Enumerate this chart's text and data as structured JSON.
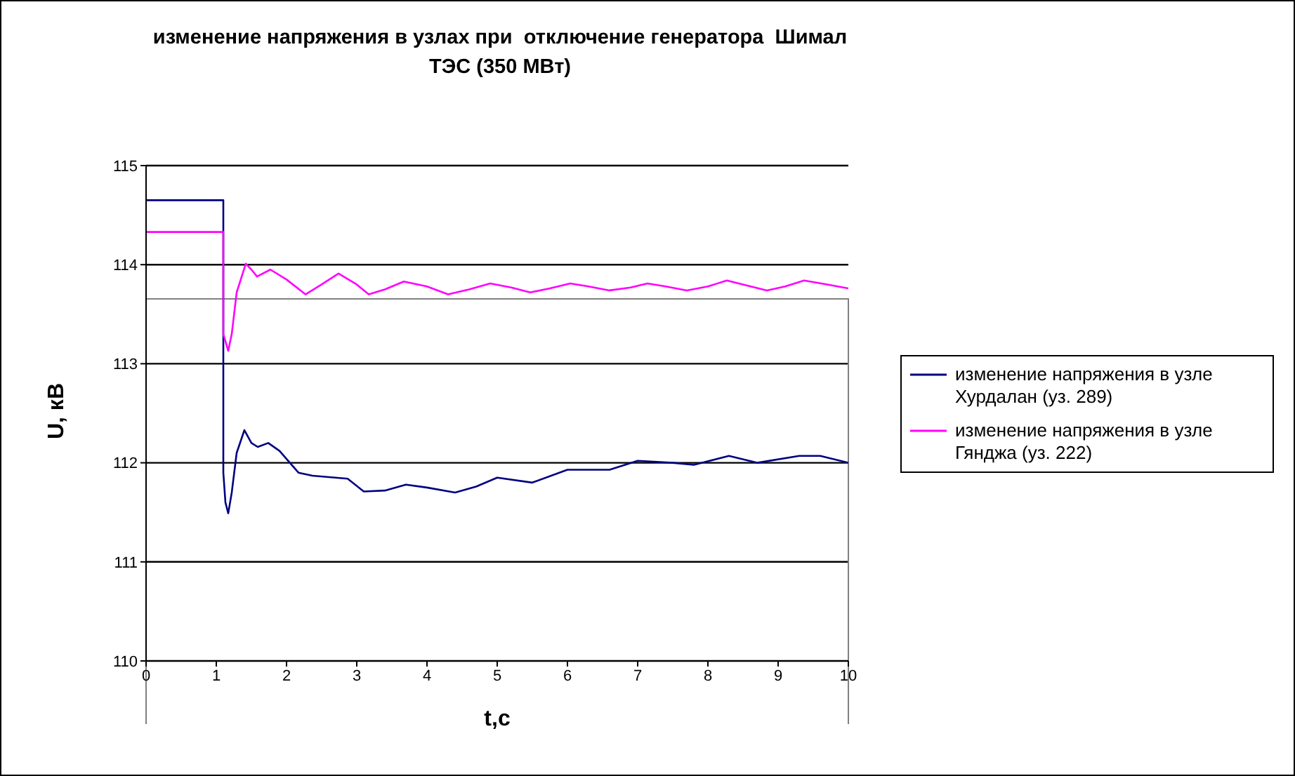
{
  "chart_data": {
    "type": "line",
    "title": "изменение напряжения в узлах при  отключение генератора  Шимал ТЭС (350 МВт)",
    "xlabel": "t,c",
    "ylabel": "U, кВ",
    "xlim": [
      0,
      10
    ],
    "xticks": [
      0,
      1,
      2,
      3,
      4,
      5,
      6,
      7,
      8,
      9,
      10
    ],
    "ylim": [
      110,
      115
    ],
    "yticks": [
      110,
      111,
      112,
      113,
      114,
      115
    ],
    "grid": "y",
    "legend": "right",
    "marker": "none",
    "line_style": "solid",
    "series": [
      {
        "name": "изменение напряжения в узле Хурдалан (уз. 289)",
        "color": "#000080",
        "x": [
          0,
          1.1,
          1.1,
          1.13,
          1.17,
          1.22,
          1.29,
          1.4,
          1.5,
          1.59,
          1.74,
          1.9,
          2.17,
          2.37,
          2.87,
          3.1,
          3.4,
          3.7,
          4,
          4.4,
          4.7,
          5,
          5.5,
          6,
          6.6,
          7,
          7.5,
          7.8,
          8.3,
          8.7,
          9.3,
          9.6,
          10
        ],
        "values": [
          114.65,
          114.65,
          111.9,
          111.6,
          111.49,
          111.7,
          112.1,
          112.33,
          112.2,
          112.16,
          112.2,
          112.12,
          111.9,
          111.87,
          111.84,
          111.71,
          111.72,
          111.78,
          111.75,
          111.7,
          111.76,
          111.85,
          111.8,
          111.93,
          111.93,
          112.02,
          112.0,
          111.98,
          112.07,
          112.0,
          112.07,
          112.07,
          112.0
        ]
      },
      {
        "name": "изменение напряжения в узле Гянджа (уз. 222)",
        "color": "#ff00ff",
        "x": [
          0,
          1.1,
          1.1,
          1.17,
          1.22,
          1.29,
          1.42,
          1.5,
          1.58,
          1.77,
          2.0,
          2.27,
          2.5,
          2.74,
          3.0,
          3.17,
          3.4,
          3.67,
          4.0,
          4.3,
          4.6,
          4.9,
          5.2,
          5.47,
          5.75,
          6.04,
          6.3,
          6.6,
          6.9,
          7.14,
          7.4,
          7.7,
          8.0,
          8.27,
          8.55,
          8.84,
          9.1,
          9.37,
          9.7,
          10
        ],
        "values": [
          114.33,
          114.33,
          113.3,
          113.13,
          113.3,
          113.72,
          114.01,
          113.95,
          113.88,
          113.95,
          113.85,
          113.7,
          113.8,
          113.91,
          113.8,
          113.7,
          113.75,
          113.83,
          113.78,
          113.7,
          113.75,
          113.81,
          113.77,
          113.72,
          113.76,
          113.81,
          113.78,
          113.74,
          113.77,
          113.81,
          113.78,
          113.74,
          113.78,
          113.84,
          113.79,
          113.74,
          113.78,
          113.84,
          113.8,
          113.76
        ]
      }
    ]
  }
}
